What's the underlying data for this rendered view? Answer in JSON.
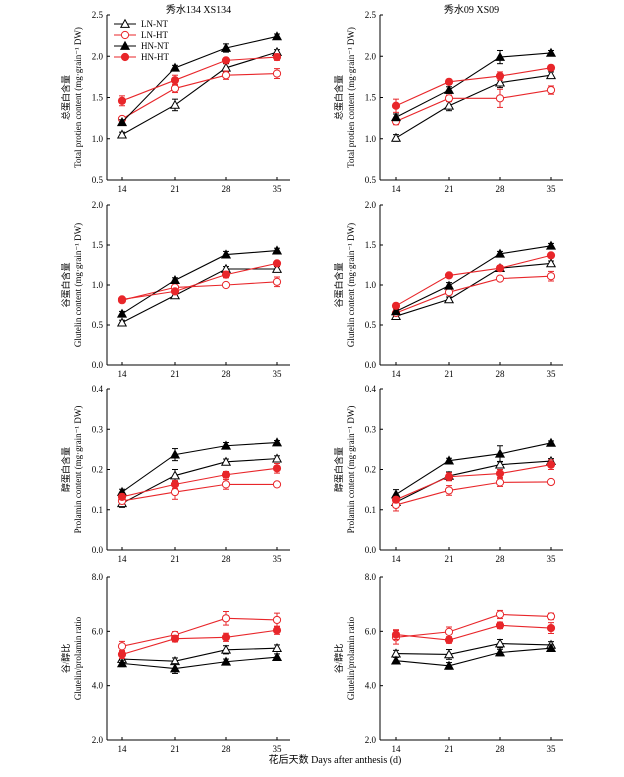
{
  "figure": {
    "x_axis_label": "花后天数 Days after anthesis (d)",
    "column_titles": [
      "秀水134 XS134",
      "秀水09 XS09"
    ],
    "legend": [
      {
        "name": "LN-NT",
        "color": "#000000",
        "marker": "triangle",
        "fill": "open"
      },
      {
        "name": "LN-HT",
        "color": "#e8262a",
        "marker": "circle",
        "fill": "open"
      },
      {
        "name": "HN-NT",
        "color": "#000000",
        "marker": "triangle",
        "fill": "filled"
      },
      {
        "name": "HN-HT",
        "color": "#e8262a",
        "marker": "circle",
        "fill": "filled"
      }
    ],
    "row_ylabels": [
      {
        "cn": "总蛋白含量",
        "en": "Total protien content (mg·grain⁻¹ DW)"
      },
      {
        "cn": "谷蛋白含量",
        "en": "Glutelin content (mg·grain⁻¹ DW)"
      },
      {
        "cn": "醇蛋白含量",
        "en": "Prolamin content (mg·grain⁻¹ DW)"
      },
      {
        "cn": "谷/醇比",
        "en": "Glutelin/prolamin ratio"
      }
    ]
  },
  "chart_data": [
    {
      "type": "line",
      "panel": "total-protein-xs134",
      "title": "秀水134 XS134",
      "legend": "top-left",
      "x": [
        14,
        21,
        28,
        35
      ],
      "ylim": [
        0.5,
        2.5
      ],
      "yticks": [
        "0.5",
        "1.0",
        "1.5",
        "2.0",
        "2.5"
      ],
      "series": [
        {
          "name": "LN-NT",
          "values": [
            1.05,
            1.41,
            1.86,
            2.05
          ],
          "errors": [
            0.03,
            0.07,
            0.05,
            0.03
          ]
        },
        {
          "name": "LN-HT",
          "values": [
            1.24,
            1.61,
            1.77,
            1.79
          ],
          "errors": [
            0.03,
            0.05,
            0.05,
            0.06
          ]
        },
        {
          "name": "HN-NT",
          "values": [
            1.2,
            1.86,
            2.1,
            2.24
          ],
          "errors": [
            0.03,
            0.03,
            0.05,
            0.03
          ]
        },
        {
          "name": "HN-HT",
          "values": [
            1.46,
            1.71,
            1.95,
            1.99
          ],
          "errors": [
            0.06,
            0.06,
            0.03,
            0.04
          ]
        }
      ]
    },
    {
      "type": "line",
      "panel": "total-protein-xs09",
      "title": "秀水09 XS09",
      "x": [
        14,
        21,
        28,
        35
      ],
      "ylim": [
        0.5,
        2.5
      ],
      "yticks": [
        "0.5",
        "1.0",
        "1.5",
        "2.0",
        "2.5"
      ],
      "series": [
        {
          "name": "LN-NT",
          "values": [
            1.01,
            1.4,
            1.68,
            1.77
          ],
          "errors": [
            0.04,
            0.06,
            0.06,
            0.04
          ]
        },
        {
          "name": "LN-HT",
          "values": [
            1.21,
            1.49,
            1.49,
            1.59
          ],
          "errors": [
            0.04,
            0.04,
            0.11,
            0.05
          ]
        },
        {
          "name": "HN-NT",
          "values": [
            1.26,
            1.59,
            1.99,
            2.04
          ],
          "errors": [
            0.04,
            0.04,
            0.08,
            0.03
          ]
        },
        {
          "name": "HN-HT",
          "values": [
            1.4,
            1.69,
            1.76,
            1.86
          ],
          "errors": [
            0.08,
            0.03,
            0.05,
            0.03
          ]
        }
      ]
    },
    {
      "type": "line",
      "panel": "glutelin-xs134",
      "x": [
        14,
        21,
        28,
        35
      ],
      "ylim": [
        0.0,
        2.0
      ],
      "yticks": [
        "0.0",
        "0.5",
        "1.0",
        "1.5",
        "2.0"
      ],
      "series": [
        {
          "name": "LN-NT",
          "values": [
            0.53,
            0.87,
            1.2,
            1.2
          ],
          "errors": [
            0.03,
            0.03,
            0.03,
            0.03
          ]
        },
        {
          "name": "LN-HT",
          "values": [
            0.81,
            0.97,
            1.0,
            1.04
          ],
          "errors": [
            0.03,
            0.03,
            0.03,
            0.06
          ]
        },
        {
          "name": "HN-NT",
          "values": [
            0.64,
            1.06,
            1.38,
            1.43
          ],
          "errors": [
            0.03,
            0.03,
            0.04,
            0.03
          ]
        },
        {
          "name": "HN-HT",
          "values": [
            0.82,
            0.92,
            1.13,
            1.27
          ],
          "errors": [
            0.03,
            0.03,
            0.04,
            0.03
          ]
        }
      ]
    },
    {
      "type": "line",
      "panel": "glutelin-xs09",
      "x": [
        14,
        21,
        28,
        35
      ],
      "ylim": [
        0.0,
        2.0
      ],
      "yticks": [
        "0.0",
        "0.5",
        "1.0",
        "1.5",
        "2.0"
      ],
      "series": [
        {
          "name": "LN-NT",
          "values": [
            0.61,
            0.82,
            1.21,
            1.27
          ],
          "errors": [
            0.03,
            0.03,
            0.03,
            0.03
          ]
        },
        {
          "name": "LN-HT",
          "values": [
            0.65,
            0.91,
            1.08,
            1.11
          ],
          "errors": [
            0.03,
            0.03,
            0.03,
            0.06
          ]
        },
        {
          "name": "HN-NT",
          "values": [
            0.67,
            0.99,
            1.39,
            1.49
          ],
          "errors": [
            0.03,
            0.04,
            0.03,
            0.03
          ]
        },
        {
          "name": "HN-HT",
          "values": [
            0.74,
            1.12,
            1.21,
            1.37
          ],
          "errors": [
            0.03,
            0.03,
            0.03,
            0.03
          ]
        }
      ]
    },
    {
      "type": "line",
      "panel": "prolamin-xs134",
      "x": [
        14,
        21,
        28,
        35
      ],
      "ylim": [
        0.0,
        0.4
      ],
      "yticks": [
        "0.0",
        "0.1",
        "0.2",
        "0.3",
        "0.4"
      ],
      "series": [
        {
          "name": "LN-NT",
          "values": [
            0.116,
            0.185,
            0.219,
            0.227
          ],
          "errors": [
            0.01,
            0.015,
            0.007,
            0.007
          ]
        },
        {
          "name": "LN-HT",
          "values": [
            0.122,
            0.144,
            0.163,
            0.163
          ],
          "errors": [
            0.008,
            0.018,
            0.012,
            0.006
          ]
        },
        {
          "name": "HN-NT",
          "values": [
            0.144,
            0.237,
            0.259,
            0.267
          ],
          "errors": [
            0.007,
            0.015,
            0.008,
            0.005
          ]
        },
        {
          "name": "HN-HT",
          "values": [
            0.132,
            0.163,
            0.187,
            0.203
          ],
          "errors": [
            0.007,
            0.01,
            0.008,
            0.012
          ]
        }
      ]
    },
    {
      "type": "line",
      "panel": "prolamin-xs09",
      "x": [
        14,
        21,
        28,
        35
      ],
      "ylim": [
        0.0,
        0.4
      ],
      "yticks": [
        "0.0",
        "0.1",
        "0.2",
        "0.3",
        "0.4"
      ],
      "series": [
        {
          "name": "LN-NT",
          "values": [
            0.119,
            0.184,
            0.212,
            0.221
          ],
          "errors": [
            0.008,
            0.01,
            0.008,
            0.006
          ]
        },
        {
          "name": "LN-HT",
          "values": [
            0.112,
            0.148,
            0.168,
            0.169
          ],
          "errors": [
            0.015,
            0.012,
            0.01,
            0.006
          ]
        },
        {
          "name": "HN-NT",
          "values": [
            0.138,
            0.222,
            0.239,
            0.266
          ],
          "errors": [
            0.012,
            0.006,
            0.02,
            0.005
          ]
        },
        {
          "name": "HN-HT",
          "values": [
            0.125,
            0.182,
            0.19,
            0.212
          ],
          "errors": [
            0.006,
            0.01,
            0.01,
            0.012
          ]
        }
      ]
    },
    {
      "type": "line",
      "panel": "ratio-xs134",
      "x": [
        14,
        21,
        28,
        35
      ],
      "ylim": [
        2.0,
        8.0
      ],
      "yticks": [
        "2.0",
        "4.0",
        "6.0",
        "8.0"
      ],
      "series": [
        {
          "name": "LN-NT",
          "values": [
            4.98,
            4.9,
            5.32,
            5.38
          ],
          "errors": [
            0.12,
            0.12,
            0.15,
            0.12
          ]
        },
        {
          "name": "LN-HT",
          "values": [
            5.45,
            5.87,
            6.48,
            6.42
          ],
          "errors": [
            0.18,
            0.12,
            0.25,
            0.25
          ]
        },
        {
          "name": "HN-NT",
          "values": [
            4.82,
            4.63,
            4.88,
            5.05
          ],
          "errors": [
            0.12,
            0.18,
            0.1,
            0.12
          ]
        },
        {
          "name": "HN-HT",
          "values": [
            5.15,
            5.73,
            5.78,
            6.04
          ],
          "errors": [
            0.15,
            0.12,
            0.15,
            0.15
          ]
        }
      ]
    },
    {
      "type": "line",
      "panel": "ratio-xs09",
      "x": [
        14,
        21,
        28,
        35
      ],
      "ylim": [
        2.0,
        8.0
      ],
      "yticks": [
        "2.0",
        "4.0",
        "6.0",
        "8.0"
      ],
      "series": [
        {
          "name": "LN-NT",
          "values": [
            5.18,
            5.15,
            5.55,
            5.5
          ],
          "errors": [
            0.12,
            0.18,
            0.15,
            0.12
          ]
        },
        {
          "name": "LN-HT",
          "values": [
            5.78,
            5.98,
            6.62,
            6.55
          ],
          "errors": [
            0.25,
            0.18,
            0.15,
            0.12
          ]
        },
        {
          "name": "HN-NT",
          "values": [
            4.92,
            4.73,
            5.22,
            5.38
          ],
          "errors": [
            0.12,
            0.12,
            0.12,
            0.12
          ]
        },
        {
          "name": "HN-HT",
          "values": [
            5.88,
            5.68,
            6.22,
            6.12
          ],
          "errors": [
            0.18,
            0.12,
            0.12,
            0.2
          ]
        }
      ]
    }
  ]
}
